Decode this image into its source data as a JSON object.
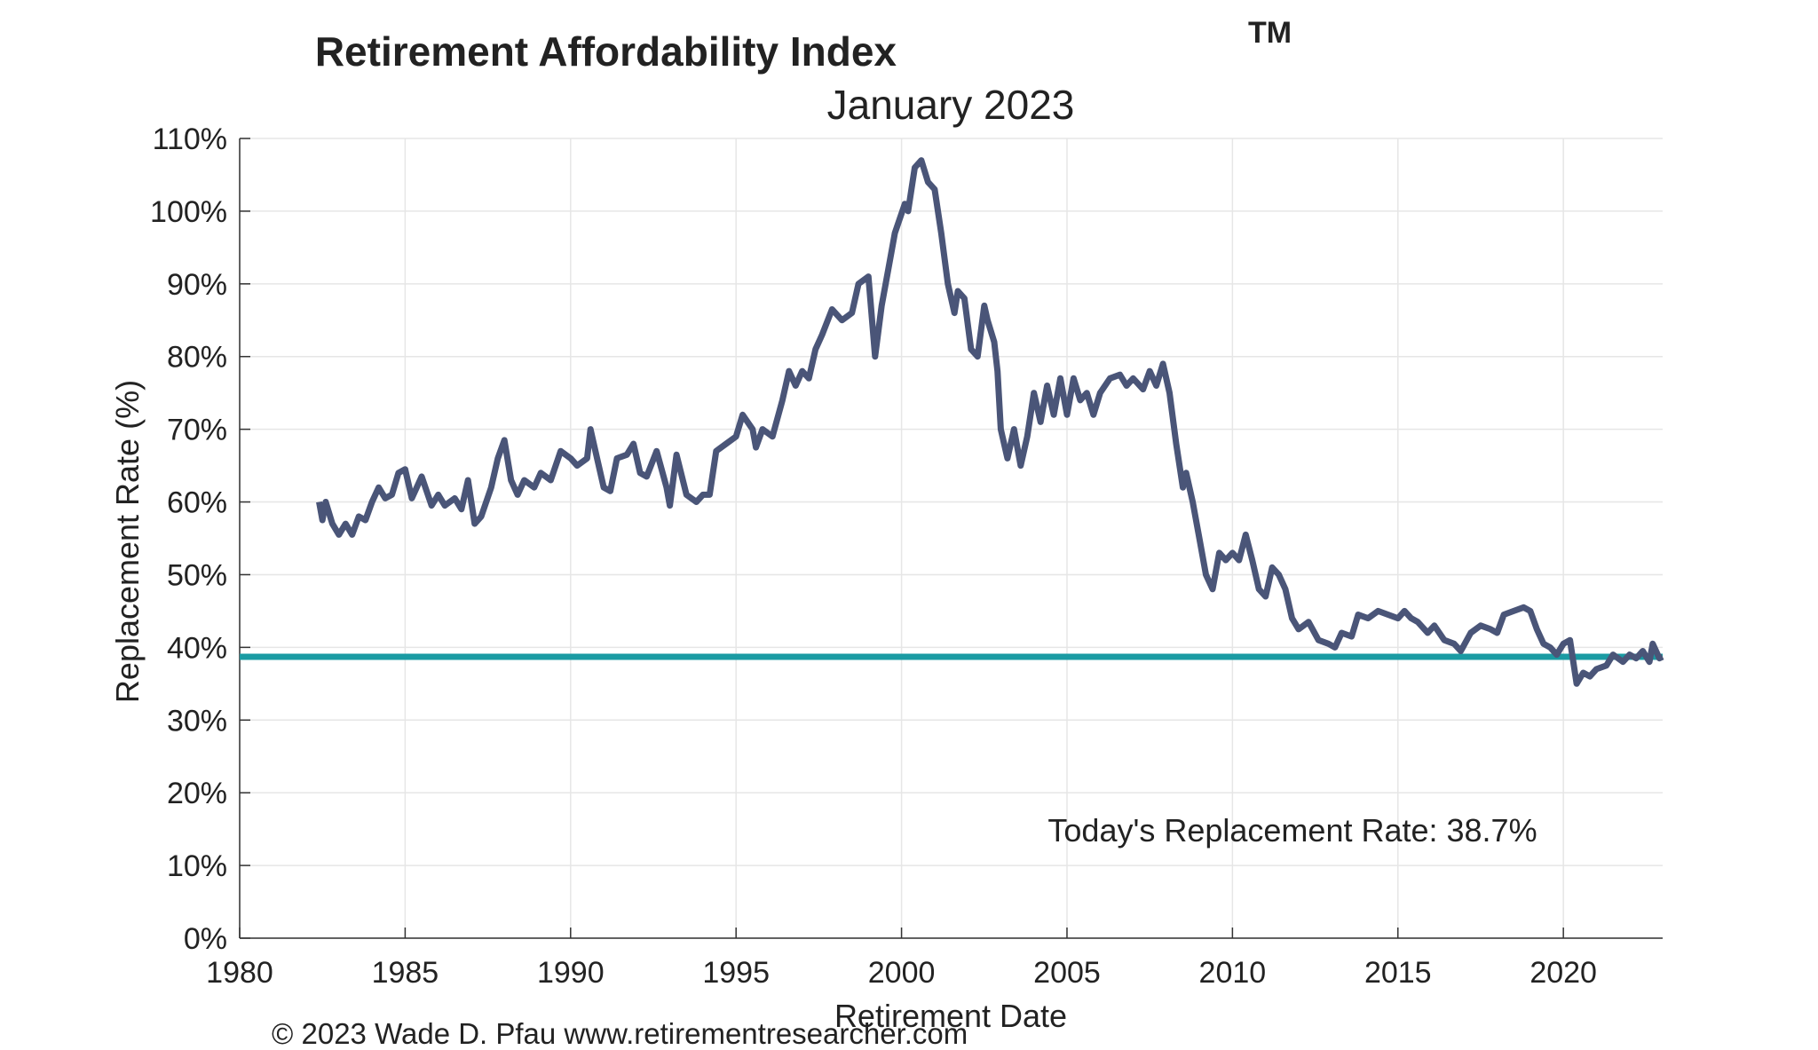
{
  "chart_data": {
    "type": "line",
    "title": "Retirement Affordability Index",
    "title_superscript": "TM",
    "subtitle": "January 2023",
    "xlabel": "Retirement Date",
    "ylabel": "Replacement Rate (%)",
    "xlim": [
      1980,
      2023
    ],
    "ylim": [
      0,
      110
    ],
    "x_ticks": [
      "1980",
      "1985",
      "1990",
      "1995",
      "2000",
      "2005",
      "2010",
      "2015",
      "2020"
    ],
    "y_ticks": [
      "0%",
      "10%",
      "20%",
      "30%",
      "40%",
      "50%",
      "60%",
      "70%",
      "80%",
      "90%",
      "100%",
      "110%"
    ],
    "grid": true,
    "line_color": "#4a5578",
    "reference_color": "#1a9ba3",
    "reference_value": 38.7,
    "annotation": "Today's Replacement Rate: 38.7%",
    "footer": "© 2023 Wade D. Pfau www.retirementresearcher.com",
    "series": [
      {
        "x": [
          1982.4,
          1982.5,
          1982.6,
          1982.8,
          1983.0,
          1983.2,
          1983.4,
          1983.6,
          1983.8,
          1984.0,
          1984.2,
          1984.4,
          1984.6,
          1984.8,
          1985.0,
          1985.2,
          1985.5,
          1985.8,
          1986.0,
          1986.2,
          1986.5,
          1986.7,
          1986.9,
          1987.1,
          1987.3,
          1987.6,
          1987.8,
          1988.0,
          1988.2,
          1988.4,
          1988.6,
          1988.9,
          1989.1,
          1989.4,
          1989.7,
          1990.0,
          1990.2,
          1990.5,
          1990.6,
          1990.8,
          1991.0,
          1991.2,
          1991.4,
          1991.7,
          1991.9,
          1992.1,
          1992.3,
          1992.6,
          1992.9,
          1993.0,
          1993.2,
          1993.5,
          1993.8,
          1994.0,
          1994.2,
          1994.4,
          1994.7,
          1995.0,
          1995.2,
          1995.5,
          1995.6,
          1995.8,
          1996.1,
          1996.4,
          1996.6,
          1996.8,
          1997.0,
          1997.2,
          1997.4,
          1997.6,
          1997.9,
          1998.2,
          1998.5,
          1998.7,
          1999.0,
          1999.2,
          1999.4,
          1999.6,
          1999.8,
          2000.1,
          2000.2,
          2000.4,
          2000.6,
          2000.8,
          2001.0,
          2001.2,
          2001.4,
          2001.6,
          2001.7,
          2001.9,
          2002.1,
          2002.3,
          2002.5,
          2002.6,
          2002.8,
          2002.9,
          2003.0,
          2003.2,
          2003.4,
          2003.6,
          2003.8,
          2004.0,
          2004.2,
          2004.4,
          2004.6,
          2004.8,
          2005.0,
          2005.2,
          2005.4,
          2005.6,
          2005.8,
          2006.0,
          2006.3,
          2006.6,
          2006.8,
          2007.0,
          2007.3,
          2007.5,
          2007.7,
          2007.9,
          2008.1,
          2008.3,
          2008.5,
          2008.6,
          2008.8,
          2009.0,
          2009.2,
          2009.4,
          2009.6,
          2009.8,
          2010.0,
          2010.2,
          2010.4,
          2010.6,
          2010.8,
          2011.0,
          2011.2,
          2011.4,
          2011.6,
          2011.8,
          2012.0,
          2012.3,
          2012.6,
          2012.9,
          2013.1,
          2013.3,
          2013.6,
          2013.8,
          2014.1,
          2014.4,
          2014.7,
          2015.0,
          2015.2,
          2015.4,
          2015.6,
          2015.9,
          2016.1,
          2016.4,
          2016.7,
          2016.9,
          2017.2,
          2017.5,
          2017.8,
          2018.0,
          2018.2,
          2018.5,
          2018.8,
          2019.0,
          2019.2,
          2019.4,
          2019.6,
          2019.8,
          2020.0,
          2020.2,
          2020.4,
          2020.6,
          2020.8,
          2021.0,
          2021.3,
          2021.5,
          2021.8,
          2022.0,
          2022.2,
          2022.4,
          2022.6,
          2022.7,
          2022.9,
          2023.0
        ],
        "y": [
          60,
          57.5,
          60,
          57,
          55.5,
          57,
          55.5,
          58,
          57.5,
          60,
          62,
          60.5,
          61,
          64,
          64.5,
          60.5,
          63.5,
          59.5,
          61,
          59.5,
          60.5,
          59,
          63,
          57,
          58,
          62,
          66,
          68.5,
          63,
          61,
          63,
          62,
          64,
          63,
          67,
          66,
          65,
          66,
          70,
          66,
          62,
          61.5,
          66,
          66.5,
          68,
          64,
          63.5,
          67,
          62,
          59.5,
          66.5,
          61,
          60,
          61,
          61,
          67,
          68,
          69,
          72,
          70,
          67.5,
          70,
          69,
          74,
          78,
          76,
          78,
          77,
          81,
          83,
          86.5,
          85,
          86,
          90,
          91,
          80,
          87,
          92,
          97,
          101,
          100,
          106,
          107,
          104,
          103,
          97,
          90,
          86,
          89,
          88,
          81,
          80,
          87,
          85,
          82,
          78,
          70,
          66,
          70,
          65,
          69,
          75,
          71,
          76,
          72,
          77,
          72,
          77,
          74,
          75,
          72,
          75,
          77,
          77.5,
          76,
          77,
          75.5,
          78,
          76,
          79,
          75,
          68,
          62,
          64,
          60,
          55,
          50,
          48,
          53,
          52,
          53,
          52,
          55.5,
          52,
          48,
          47,
          51,
          50,
          48,
          44,
          42.5,
          43.5,
          41,
          40.5,
          40,
          42,
          41.5,
          44.5,
          44,
          45,
          44.5,
          44,
          45,
          44,
          43.5,
          42,
          43,
          41,
          40.5,
          39.5,
          42,
          43,
          42.5,
          42,
          44.5,
          45,
          45.5,
          45,
          42.5,
          40.5,
          40,
          39,
          40.5,
          41,
          35,
          36.5,
          36,
          37,
          37.5,
          39,
          38,
          39,
          38.5,
          39.5,
          38,
          40.5,
          38.5,
          38.7
        ]
      }
    ]
  }
}
